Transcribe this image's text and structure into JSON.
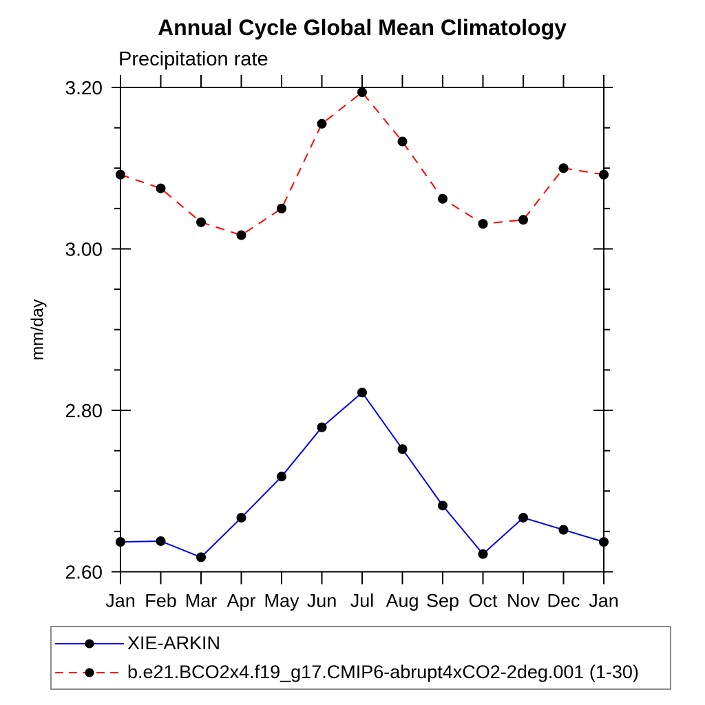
{
  "page": {
    "background": "#ffffff"
  },
  "chart_data": {
    "type": "line",
    "title": "Annual Cycle Global Mean Climatology",
    "subtitle": "Precipitation rate",
    "xlabel": "",
    "ylabel": "mm/day",
    "categories": [
      "Jan",
      "Feb",
      "Mar",
      "Apr",
      "May",
      "Jun",
      "Jul",
      "Aug",
      "Sep",
      "Oct",
      "Nov",
      "Dec",
      "Jan"
    ],
    "ylim": [
      2.6,
      3.2
    ],
    "yticks": [
      2.6,
      2.8,
      3.0,
      3.2
    ],
    "ytick_labels": [
      "2.60",
      "2.80",
      "3.00",
      "3.20"
    ],
    "yminor_step": 0.05,
    "grid": false,
    "legend_position": "bottom-left",
    "axis_color": "#000000",
    "text_color": "#000000",
    "marker_shape": "filled-circle",
    "series": [
      {
        "name": "XIE-ARKIN",
        "color": "#0000ee",
        "line_style": "solid",
        "marker_color": "#000000",
        "values": [
          2.637,
          2.638,
          2.618,
          2.667,
          2.718,
          2.779,
          2.822,
          2.752,
          2.682,
          2.622,
          2.667,
          2.652,
          2.637
        ]
      },
      {
        "name": "b.e21.BCO2x4.f19_g17.CMIP6-abrupt4xCO2-2deg.001 (1-30)",
        "color": "#ff0000",
        "line_style": "dashed",
        "marker_color": "#000000",
        "values": [
          3.092,
          3.075,
          3.033,
          3.017,
          3.05,
          3.155,
          3.194,
          3.133,
          3.062,
          3.031,
          3.036,
          3.1,
          3.092
        ]
      }
    ]
  }
}
